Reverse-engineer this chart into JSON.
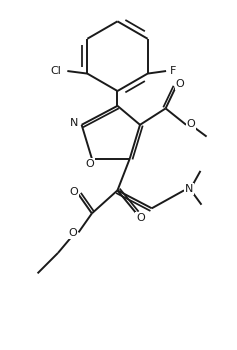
{
  "bg_color": "#ffffff",
  "line_color": "#1a1a1a",
  "line_width": 1.4,
  "font_size": 8.0,
  "figsize": [
    2.37,
    3.5
  ],
  "dpi": 100,
  "xlim": [
    -2.0,
    2.6
  ],
  "ylim": [
    -3.2,
    3.6
  ]
}
